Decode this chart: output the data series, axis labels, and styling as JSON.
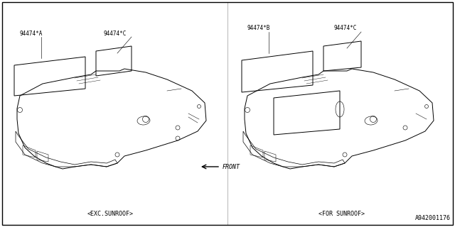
{
  "bg_color": "#ffffff",
  "border_color": "#000000",
  "line_color": "#000000",
  "diagram_number": "A942001176",
  "left_label": "<EXC.SUNROOF>",
  "right_label": "<FOR SUNROOF>",
  "front_label": "FRONT",
  "left_parts": {
    "A": "94474*A",
    "C": "94474*C"
  },
  "right_parts": {
    "B": "94474*B",
    "C": "94474*C"
  }
}
